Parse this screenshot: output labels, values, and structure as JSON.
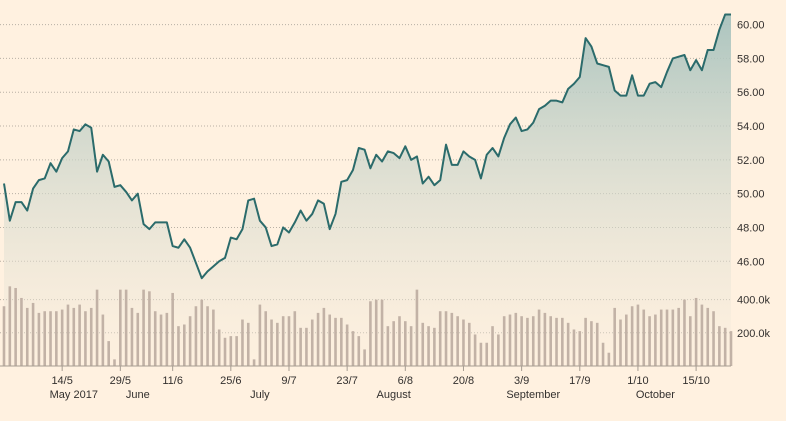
{
  "chart_data": {
    "type": "line",
    "price": {
      "y_ticks": [
        46,
        48,
        50,
        52,
        54,
        56,
        58,
        60
      ],
      "y_tick_labels": [
        "46.00",
        "48.00",
        "50.00",
        "52.00",
        "54.00",
        "56.00",
        "58.00",
        "60.00"
      ],
      "ylim": [
        44.3,
        61.1
      ],
      "values": [
        50.6,
        48.4,
        49.5,
        49.5,
        49.0,
        50.3,
        50.8,
        50.9,
        51.8,
        51.3,
        52.1,
        52.5,
        53.8,
        53.7,
        54.1,
        53.9,
        51.3,
        52.3,
        51.9,
        50.4,
        50.5,
        50.1,
        49.6,
        50.0,
        48.2,
        47.9,
        48.3,
        48.3,
        48.3,
        46.9,
        46.8,
        47.3,
        46.8,
        45.9,
        45.0,
        45.4,
        45.7,
        46.0,
        46.2,
        47.4,
        47.3,
        47.9,
        49.6,
        49.7,
        48.4,
        48.0,
        46.9,
        47.0,
        48.0,
        47.7,
        48.3,
        49.0,
        48.4,
        48.8,
        49.6,
        49.4,
        47.9,
        48.8,
        50.7,
        50.8,
        51.4,
        52.7,
        52.6,
        51.5,
        52.3,
        51.9,
        52.5,
        52.4,
        52.1,
        52.8,
        52.0,
        52.2,
        50.6,
        51.0,
        50.5,
        50.8,
        52.9,
        51.7,
        51.7,
        52.5,
        52.2,
        52.0,
        50.9,
        52.3,
        52.7,
        52.2,
        53.3,
        54.1,
        54.5,
        53.7,
        53.8,
        54.2,
        55.0,
        55.2,
        55.5,
        55.5,
        55.4,
        56.2,
        56.5,
        56.9,
        59.2,
        58.7,
        57.7,
        57.6,
        57.5,
        56.1,
        55.8,
        55.8,
        57.0,
        55.8,
        55.8,
        56.5,
        56.6,
        56.3,
        57.2,
        58.0,
        58.1,
        58.2,
        57.3,
        57.9,
        57.3,
        58.5,
        58.5,
        59.7,
        60.6,
        60.6
      ]
    },
    "volume": {
      "y_ticks": [
        200000,
        400000
      ],
      "y_tick_labels": [
        "200.0k",
        "400.0k"
      ],
      "ylim": [
        0,
        500000
      ],
      "values": [
        360000,
        480000,
        470000,
        410000,
        350000,
        380000,
        320000,
        330000,
        330000,
        330000,
        340000,
        370000,
        350000,
        370000,
        330000,
        350000,
        460000,
        310000,
        150000,
        40000,
        460000,
        460000,
        350000,
        320000,
        460000,
        450000,
        330000,
        310000,
        320000,
        440000,
        240000,
        250000,
        300000,
        360000,
        400000,
        360000,
        340000,
        220000,
        170000,
        180000,
        180000,
        280000,
        260000,
        40000,
        370000,
        330000,
        280000,
        260000,
        300000,
        300000,
        330000,
        230000,
        230000,
        280000,
        320000,
        350000,
        310000,
        290000,
        290000,
        250000,
        210000,
        180000,
        100000,
        390000,
        400000,
        400000,
        240000,
        270000,
        300000,
        270000,
        240000,
        460000,
        260000,
        240000,
        230000,
        330000,
        330000,
        320000,
        300000,
        280000,
        260000,
        190000,
        140000,
        140000,
        240000,
        190000,
        300000,
        310000,
        320000,
        300000,
        290000,
        300000,
        340000,
        320000,
        300000,
        290000,
        290000,
        260000,
        220000,
        210000,
        290000,
        270000,
        260000,
        140000,
        80000,
        350000,
        280000,
        310000,
        360000,
        370000,
        340000,
        300000,
        310000,
        340000,
        340000,
        340000,
        350000,
        400000,
        300000,
        410000,
        370000,
        350000,
        330000,
        240000,
        230000,
        210000
      ]
    },
    "x_ticks": [
      {
        "label": "14/5",
        "index": 10
      },
      {
        "label": "29/5",
        "index": 20
      },
      {
        "label": "11/6",
        "index": 29
      },
      {
        "label": "25/6",
        "index": 39
      },
      {
        "label": "9/7",
        "index": 49
      },
      {
        "label": "23/7",
        "index": 59
      },
      {
        "label": "6/8",
        "index": 69
      },
      {
        "label": "20/8",
        "index": 79
      },
      {
        "label": "3/9",
        "index": 89
      },
      {
        "label": "17/9",
        "index": 99
      },
      {
        "label": "1/10",
        "index": 109
      },
      {
        "label": "15/10",
        "index": 119
      }
    ],
    "month_labels": [
      {
        "label": "May 2017",
        "index": 12
      },
      {
        "label": "June",
        "index": 23
      },
      {
        "label": "July",
        "index": 44
      },
      {
        "label": "August",
        "index": 67
      },
      {
        "label": "September",
        "index": 91
      },
      {
        "label": "October",
        "index": 112
      }
    ],
    "colors": {
      "line": "#2b6b6b",
      "fill_top": "#a7c2bd",
      "fill_bottom": "#fbeedd",
      "volume_bar": "#c2b2a6"
    }
  }
}
